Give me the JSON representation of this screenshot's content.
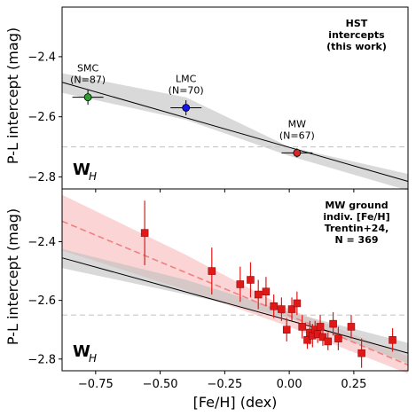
{
  "chart_data": [
    {
      "type": "scatter",
      "ylabel": "P-L intercept (mag)",
      "xlim": [
        -0.88,
        0.46
      ],
      "ylim": [
        -2.84,
        -2.235
      ],
      "yticks": [
        -2.4,
        -2.6,
        -2.8
      ],
      "ytick_labels": [
        "−2.4",
        "−2.6",
        "−2.8"
      ],
      "reference_line_y": -2.7,
      "title_lines": [
        "HST",
        "intercepts",
        "(this work)"
      ],
      "band_label": "W",
      "band_sub": "H",
      "fit_line": {
        "x": [
          -0.88,
          0.46
        ],
        "y": [
          -2.485,
          -2.815
        ]
      },
      "confidence_band": {
        "x": [
          -0.88,
          -0.4,
          0.0,
          0.46
        ],
        "upper": [
          -2.455,
          -2.535,
          -2.7,
          -2.79
        ],
        "lower": [
          -2.52,
          -2.61,
          -2.73,
          -2.845
        ]
      },
      "points": [
        {
          "name_lines": [
            "SMC",
            "(N=87)"
          ],
          "x": -0.78,
          "y": -2.535,
          "xerr": 0.06,
          "yerr": 0.025,
          "color": "#2ca02c"
        },
        {
          "name_lines": [
            "LMC",
            "(N=70)"
          ],
          "x": -0.4,
          "y": -2.57,
          "xerr": 0.06,
          "yerr": 0.025,
          "color": "#1414e6"
        },
        {
          "name_lines": [
            "MW",
            "(N=67)"
          ],
          "x": 0.03,
          "y": -2.72,
          "xerr": 0.06,
          "yerr": 0.015,
          "color": "#d62728"
        }
      ]
    },
    {
      "type": "scatter",
      "xlabel": "[Fe/H] (dex)",
      "ylabel": "P-L intercept (mag)",
      "xlim": [
        -0.88,
        0.46
      ],
      "ylim": [
        -2.84,
        -2.22
      ],
      "xticks": [
        -0.75,
        -0.5,
        -0.25,
        0.0,
        0.25
      ],
      "xtick_labels": [
        "−0.75",
        "−0.50",
        "−0.25",
        "0.00",
        "0.25"
      ],
      "yticks": [
        -2.4,
        -2.6,
        -2.8
      ],
      "ytick_labels": [
        "−2.4",
        "−2.6",
        "−2.8"
      ],
      "reference_line_y": -2.65,
      "title_lines": [
        "MW ground",
        "indiv. [Fe/H]",
        "Trentin+24,",
        "N = 369"
      ],
      "band_label": "W",
      "band_sub": "H",
      "black_fit_line": {
        "x": [
          -0.88,
          0.46
        ],
        "y": [
          -2.455,
          -2.78
        ]
      },
      "black_band": {
        "x": [
          -0.88,
          -0.4,
          0.0,
          0.46
        ],
        "upper": [
          -2.425,
          -2.53,
          -2.64,
          -2.745
        ],
        "lower": [
          -2.49,
          -2.58,
          -2.66,
          -2.815
        ]
      },
      "red_fit_line": {
        "x": [
          -0.88,
          0.46
        ],
        "y": [
          -2.33,
          -2.82
        ]
      },
      "red_band": {
        "x": [
          -0.88,
          -0.4,
          0.0,
          0.46
        ],
        "upper": [
          -2.24,
          -2.445,
          -2.63,
          -2.79
        ],
        "lower": [
          -2.43,
          -2.565,
          -2.69,
          -2.85
        ]
      },
      "points": [
        {
          "x": -0.56,
          "y": -2.37,
          "yerr": 0.11
        },
        {
          "x": -0.3,
          "y": -2.5,
          "yerr": 0.08
        },
        {
          "x": -0.19,
          "y": -2.545,
          "yerr": 0.06
        },
        {
          "x": -0.15,
          "y": -2.53,
          "yerr": 0.06
        },
        {
          "x": -0.12,
          "y": -2.58,
          "yerr": 0.05
        },
        {
          "x": -0.09,
          "y": -2.57,
          "yerr": 0.05
        },
        {
          "x": -0.06,
          "y": -2.62,
          "yerr": 0.04
        },
        {
          "x": -0.03,
          "y": -2.63,
          "yerr": 0.04
        },
        {
          "x": -0.01,
          "y": -2.7,
          "yerr": 0.04
        },
        {
          "x": 0.01,
          "y": -2.63,
          "yerr": 0.04
        },
        {
          "x": 0.03,
          "y": -2.61,
          "yerr": 0.04
        },
        {
          "x": 0.05,
          "y": -2.69,
          "yerr": 0.04
        },
        {
          "x": 0.07,
          "y": -2.735,
          "yerr": 0.03
        },
        {
          "x": 0.08,
          "y": -2.71,
          "yerr": 0.04
        },
        {
          "x": 0.09,
          "y": -2.72,
          "yerr": 0.04
        },
        {
          "x": 0.1,
          "y": -2.7,
          "yerr": 0.03
        },
        {
          "x": 0.11,
          "y": -2.715,
          "yerr": 0.03
        },
        {
          "x": 0.12,
          "y": -2.69,
          "yerr": 0.04
        },
        {
          "x": 0.13,
          "y": -2.725,
          "yerr": 0.03
        },
        {
          "x": 0.15,
          "y": -2.74,
          "yerr": 0.03
        },
        {
          "x": 0.17,
          "y": -2.68,
          "yerr": 0.04
        },
        {
          "x": 0.19,
          "y": -2.73,
          "yerr": 0.04
        },
        {
          "x": 0.24,
          "y": -2.69,
          "yerr": 0.04
        },
        {
          "x": 0.28,
          "y": -2.78,
          "yerr": 0.05
        },
        {
          "x": 0.4,
          "y": -2.735,
          "yerr": 0.04
        }
      ]
    }
  ]
}
